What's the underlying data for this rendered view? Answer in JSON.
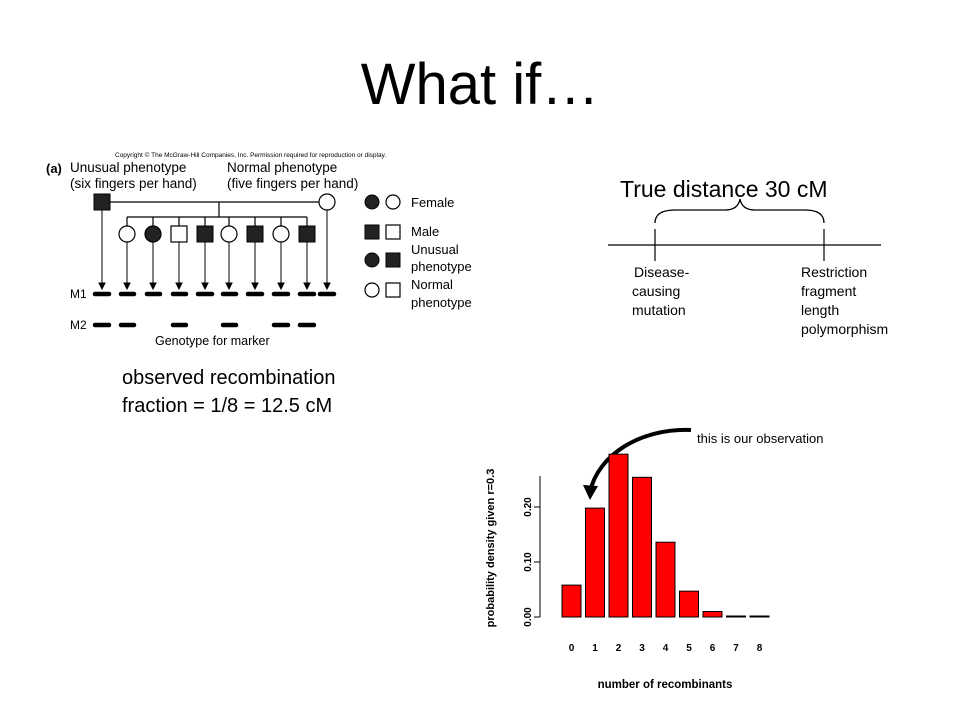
{
  "slide": {
    "title": "What if…",
    "observed_line1": "observed recombination",
    "observed_line2": "fraction = 1/8 = 12.5 cM"
  },
  "pedigree": {
    "copyright": "Copyright © The McGraw-Hill Companies, Inc. Permission required for reproduction or display.",
    "panel_label": "(a)",
    "unusual_line1": "Unusual phenotype",
    "unusual_line2": "(six fingers per hand)",
    "normal_line1": "Normal phenotype",
    "normal_line2": "(five fingers per hand)",
    "legend_female": "Female",
    "legend_male": "Male",
    "legend_unusual_1": "Unusual",
    "legend_unusual_2": "phenotype",
    "legend_normal_1": "Normal",
    "legend_normal_2": "phenotype",
    "m1_label": "M1",
    "m2_label": "M2",
    "genotype_caption": "Genotype for marker"
  },
  "map": {
    "distance_label": "True distance 30 cM",
    "left_locus": [
      "Disease-",
      "causing",
      "mutation"
    ],
    "right_locus": [
      "Restriction",
      "fragment",
      "length",
      "polymorphism"
    ]
  },
  "annotation": {
    "observation_text": "this is our observation"
  },
  "chart_data": {
    "type": "bar",
    "categories": [
      "0",
      "1",
      "2",
      "3",
      "4",
      "5",
      "6",
      "7",
      "8"
    ],
    "values": [
      0.058,
      0.198,
      0.296,
      0.254,
      0.136,
      0.047,
      0.01,
      0.001,
      0.0001
    ],
    "ylabel": "probability density given r=0.3",
    "xlabel": "number of recombinants",
    "yticks": [
      "0.00",
      "0.10",
      "0.20"
    ],
    "ytick_values": [
      0.0,
      0.1,
      0.2
    ],
    "ylim": [
      0,
      0.3
    ],
    "bar_color": "#ff0000",
    "grid": false
  }
}
